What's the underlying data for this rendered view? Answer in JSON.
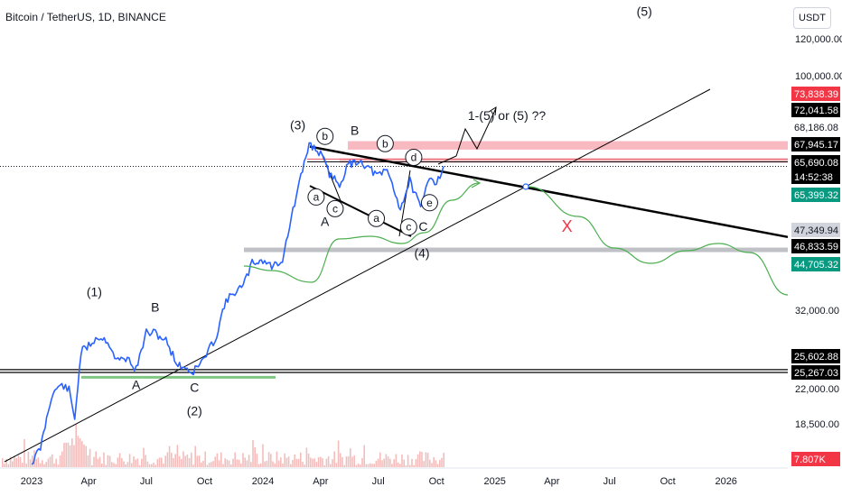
{
  "header": {
    "symbol": "Bitcoin / TetherUS, 1D, BINANCE",
    "currency": "USDT"
  },
  "colors": {
    "candle": "#2962ff",
    "trend": "#000000",
    "projection": "#4caf50",
    "resistance_zone": "#f7a8b0",
    "support_line": "#9598a1",
    "invalid_mark": "#f23645",
    "volume": "#f1a5a5"
  },
  "chart_data": {
    "type": "line",
    "xlabel": "",
    "ylabel": "",
    "y_scale": "log",
    "x_ticks": [
      "2023",
      "Apr",
      "Jul",
      "Oct",
      "2024",
      "Apr",
      "Jul",
      "Oct",
      "2025",
      "Apr",
      "Jul",
      "Oct",
      "2026"
    ],
    "y_ticks": [
      "120,000.00",
      "100,000.00",
      "32,000.00",
      "22,000.00",
      "18,500.00"
    ],
    "price_labels": [
      {
        "text": "73,838.39",
        "style": "pink"
      },
      {
        "text": "72,041.58",
        "style": "black"
      },
      {
        "text": "68,186.08",
        "style": "plain"
      },
      {
        "text": "67,945.17",
        "style": "black"
      },
      {
        "text": "65,690.08",
        "style": "black"
      },
      {
        "text": "14:52:38",
        "style": "black"
      },
      {
        "text": "65,399.32",
        "style": "green"
      },
      {
        "text": "47,349.94",
        "style": "grey"
      },
      {
        "text": "46,833.59",
        "style": "black"
      },
      {
        "text": "44,705.32",
        "style": "green"
      },
      {
        "text": "25,602.88",
        "style": "black"
      },
      {
        "text": "25,267.03",
        "style": "black"
      },
      {
        "text": "7.807K",
        "style": "red"
      }
    ],
    "series": [
      {
        "x": [
          "2023-01-01",
          "2023-01-15",
          "2023-02-01",
          "2023-02-15",
          "2023-03-01",
          "2023-03-10",
          "2023-03-20",
          "2023-04-01",
          "2023-04-15",
          "2023-05-01",
          "2023-05-15",
          "2023-06-01",
          "2023-06-15",
          "2023-07-01",
          "2023-07-15",
          "2023-08-01",
          "2023-08-20",
          "2023-09-01",
          "2023-09-11",
          "2023-10-01",
          "2023-10-20",
          "2023-11-01",
          "2023-11-15",
          "2023-12-01",
          "2023-12-15",
          "2024-01-01",
          "2024-01-15",
          "2024-02-01",
          "2024-02-15",
          "2024-03-01",
          "2024-03-14",
          "2024-04-01",
          "2024-04-15",
          "2024-05-01",
          "2024-05-15",
          "2024-06-01",
          "2024-06-15",
          "2024-07-01",
          "2024-07-15",
          "2024-08-05",
          "2024-08-20",
          "2024-09-06",
          "2024-09-20",
          "2024-10-01",
          "2024-10-12"
        ],
        "y": [
          16600,
          17800,
          22600,
          23900,
          23300,
          20400,
          27800,
          28600,
          29800,
          29300,
          26700,
          27000,
          25600,
          30400,
          30300,
          29300,
          26100,
          25900,
          25200,
          27000,
          30000,
          34600,
          36500,
          37700,
          42000,
          42500,
          41300,
          42600,
          51800,
          62500,
          73000,
          69700,
          63500,
          60500,
          66200,
          67500,
          65400,
          62700,
          64700,
          54000,
          61500,
          53900,
          63000,
          60800,
          65700
        ]
      }
    ],
    "volume_scale_label": "7.807K",
    "annotations": [
      {
        "text": "(1)",
        "date": "2023-04-10",
        "price": 36000
      },
      {
        "text": "B",
        "date": "2023-07-15",
        "price": 33500
      },
      {
        "text": "A",
        "date": "2023-06-15",
        "price": 23400
      },
      {
        "text": "C",
        "date": "2023-09-15",
        "price": 23100
      },
      {
        "text": "(2)",
        "date": "2023-09-15",
        "price": 20700
      },
      {
        "text": "(3)",
        "date": "2024-02-25",
        "price": 78000
      },
      {
        "text": "A",
        "date": "2024-04-08",
        "price": 49800
      },
      {
        "text": "B",
        "date": "2024-05-25",
        "price": 76000
      },
      {
        "text": "C",
        "date": "2024-09-10",
        "price": 48700
      },
      {
        "text": "(4)",
        "date": "2024-09-08",
        "price": 43100
      },
      {
        "text": "(5)",
        "date": "2025-08-25",
        "price": 132000
      },
      {
        "text": "1-(5) or (5) ??",
        "date": "2025-01-20",
        "price": 81500
      }
    ],
    "circle_labels": [
      {
        "text": "a",
        "date": "2024-03-25",
        "price": 57000
      },
      {
        "text": "b",
        "date": "2024-04-08",
        "price": 75500
      },
      {
        "text": "c",
        "date": "2024-04-24",
        "price": 54000
      },
      {
        "text": "a",
        "date": "2024-06-28",
        "price": 51600
      },
      {
        "text": "b",
        "date": "2024-07-12",
        "price": 73000
      },
      {
        "text": "c",
        "date": "2024-08-18",
        "price": 49600
      },
      {
        "text": "d",
        "date": "2024-08-26",
        "price": 68500
      },
      {
        "text": "e",
        "date": "2024-09-20",
        "price": 55500
      }
    ],
    "invalid_mark": {
      "text": "X",
      "date": "2025-04-25",
      "price": 48500
    }
  }
}
